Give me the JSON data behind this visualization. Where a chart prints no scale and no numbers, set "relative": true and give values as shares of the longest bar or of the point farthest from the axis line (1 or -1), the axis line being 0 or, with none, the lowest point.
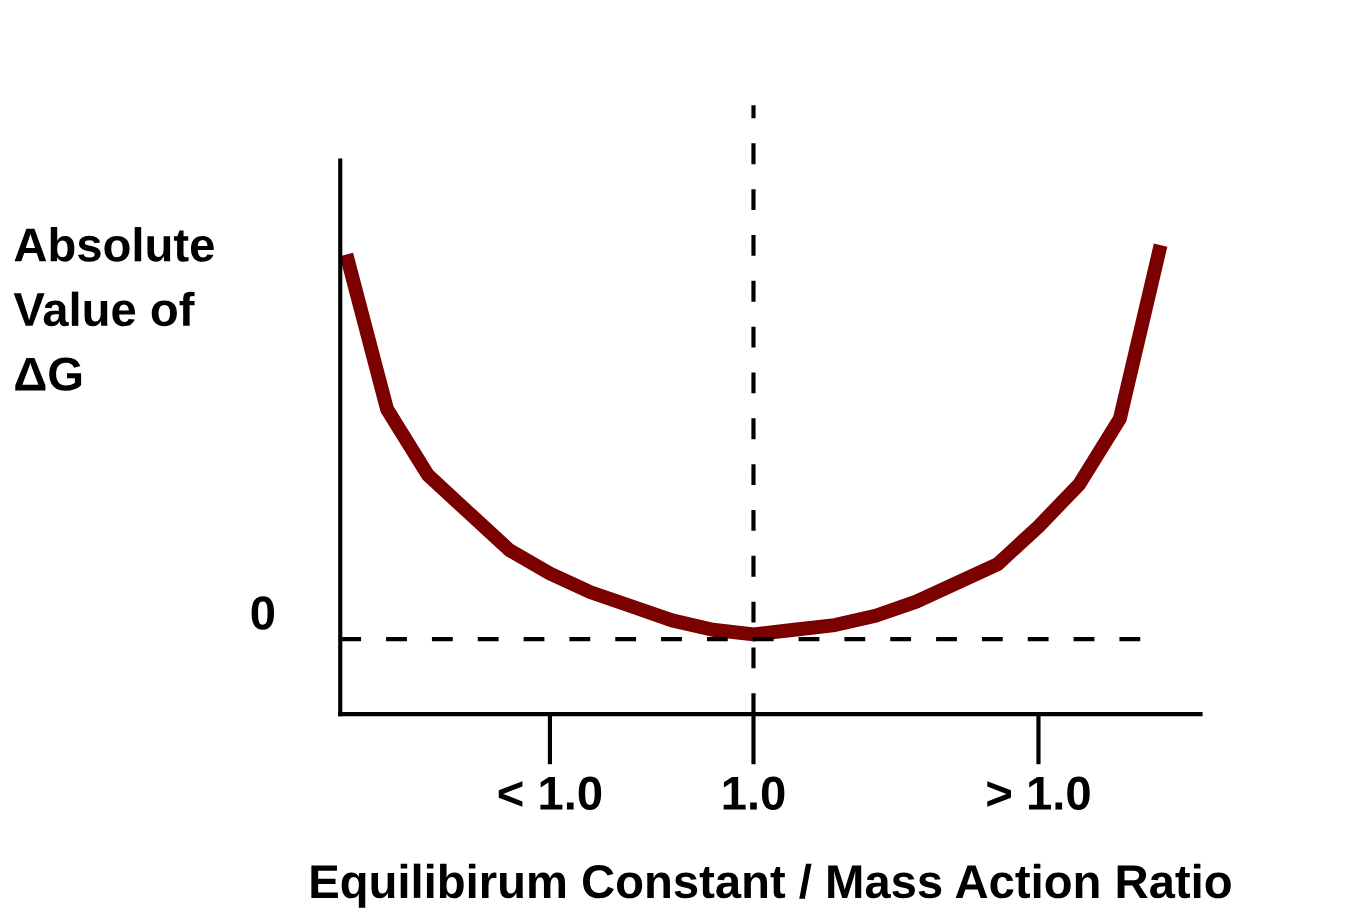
{
  "chart_data": {
    "type": "line",
    "relative": true,
    "xlabel": "Equilibirum Constant / Mass Action Ratio",
    "ylabel": "Absolute\nValue of\nΔG",
    "categories": [
      null,
      null,
      null,
      null,
      null,
      "< 1.0",
      null,
      null,
      null,
      null,
      "1.0",
      null,
      null,
      null,
      null,
      null,
      null,
      "> 1.0",
      null,
      null,
      null
    ],
    "series": [
      {
        "color": "#7b0000",
        "values": [
          0.98,
          0.65,
          0.51,
          0.43,
          0.35,
          0.3,
          0.26,
          0.23,
          0.2,
          0.18,
          0.17,
          0.18,
          0.19,
          0.21,
          0.24,
          0.28,
          0.32,
          0.4,
          0.49,
          0.63,
          1.0
        ]
      }
    ],
    "ref_lines": [
      {
        "axis": "y",
        "value": 0.16,
        "label": "0",
        "color": "#000000",
        "line_style": "dashed"
      },
      {
        "axis": "x",
        "value": "1.0",
        "color": "#000000",
        "line_style": "dashed"
      }
    ],
    "grid": false,
    "legend": false,
    "marker": "none",
    "line_style": "solid"
  }
}
